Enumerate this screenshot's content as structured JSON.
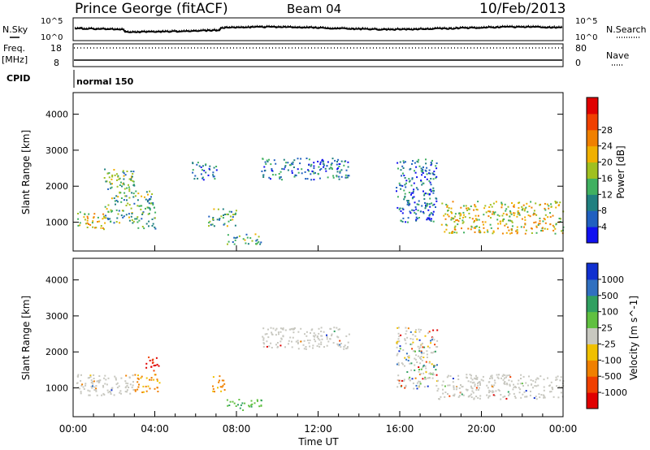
{
  "header": {
    "site": "Prince George (fitACF)",
    "beam": "Beam 04",
    "date": "10/Feb/2013"
  },
  "sky_panel": {
    "left_label": "N.Sky",
    "right_label": "N.Search",
    "left_ticks": [
      "10^5",
      "10^0"
    ],
    "right_ticks": [
      "10^5",
      "10^0"
    ]
  },
  "freq_panel": {
    "left_label_1": "Freq.",
    "left_label_2": "[MHz]",
    "right_label": "Nave",
    "left_ticks": [
      "18",
      "8"
    ],
    "right_ticks": [
      "80",
      "0"
    ]
  },
  "cpid": {
    "label": "CPID",
    "mode": "normal 150"
  },
  "chart_data": [
    {
      "type": "heatmap",
      "parameter": "power",
      "ylabel": "Slant Range [km]",
      "xlabel": "",
      "ylim": [
        200,
        4600
      ],
      "yticks": [
        "1000",
        "2000",
        "3000",
        "4000"
      ],
      "colorbar": {
        "label": "Power [dB]",
        "ticks": [
          "4",
          "8",
          "12",
          "16",
          "20",
          "24",
          "28"
        ],
        "colors": [
          "#1010f0",
          "#2060c0",
          "#208080",
          "#40b060",
          "#a0c020",
          "#f0b000",
          "#f08000",
          "#f04000",
          "#e00000"
        ]
      },
      "echo_regions": [
        {
          "t": [
            0.2,
            1.6
          ],
          "r": [
            800,
            1300
          ],
          "level": "strong"
        },
        {
          "t": [
            1.5,
            3.0
          ],
          "r": [
            1000,
            2500
          ],
          "level": "moderate"
        },
        {
          "t": [
            3.0,
            4.0
          ],
          "r": [
            800,
            1900
          ],
          "level": "moderate"
        },
        {
          "t": [
            5.8,
            7.0
          ],
          "r": [
            2200,
            2700
          ],
          "level": "weak"
        },
        {
          "t": [
            6.6,
            8.0
          ],
          "r": [
            900,
            1400
          ],
          "level": "moderate"
        },
        {
          "t": [
            7.5,
            9.2
          ],
          "r": [
            400,
            700
          ],
          "level": "moderate"
        },
        {
          "t": [
            9.2,
            13.5
          ],
          "r": [
            2200,
            2800
          ],
          "level": "weak"
        },
        {
          "t": [
            15.8,
            17.8
          ],
          "r": [
            1000,
            2800
          ],
          "level": "weak"
        },
        {
          "t": [
            18.0,
            24.0
          ],
          "r": [
            700,
            1600
          ],
          "level": "strong"
        }
      ]
    },
    {
      "type": "heatmap",
      "parameter": "velocity",
      "ylabel": "Slant Range [km]",
      "xlabel": "Time UT",
      "ylim": [
        200,
        4600
      ],
      "yticks": [
        "1000",
        "2000",
        "3000",
        "4000"
      ],
      "xticks": [
        "00:00",
        "04:00",
        "08:00",
        "12:00",
        "16:00",
        "20:00",
        "00:00"
      ],
      "xlim_hours": [
        0,
        24
      ],
      "colorbar": {
        "label": "Velocity [m s^-1]",
        "ticks": [
          "1000",
          "500",
          "100",
          "25",
          "-25",
          "-100",
          "-500",
          "-1000"
        ],
        "colors": [
          "#1030d0",
          "#3070c0",
          "#30a060",
          "#60c040",
          "#c8c8c0",
          "#f0c000",
          "#f08000",
          "#f04000",
          "#e00000"
        ]
      },
      "echo_regions": [
        {
          "t": [
            0.0,
            3.0
          ],
          "r": [
            800,
            1400
          ],
          "velocity": "near zero (ground scatter)"
        },
        {
          "t": [
            3.0,
            4.2
          ],
          "r": [
            900,
            1400
          ],
          "velocity": "-500"
        },
        {
          "t": [
            3.5,
            4.2
          ],
          "r": [
            1500,
            1900
          ],
          "velocity": "-1000"
        },
        {
          "t": [
            6.8,
            7.4
          ],
          "r": [
            900,
            1400
          ],
          "velocity": "-500"
        },
        {
          "t": [
            7.5,
            9.2
          ],
          "r": [
            400,
            700
          ],
          "velocity": "100"
        },
        {
          "t": [
            9.2,
            13.5
          ],
          "r": [
            2100,
            2700
          ],
          "velocity": "near zero (ground scatter)"
        },
        {
          "t": [
            15.8,
            17.8
          ],
          "r": [
            1000,
            2700
          ],
          "velocity": "mixed"
        },
        {
          "t": [
            17.8,
            24.0
          ],
          "r": [
            700,
            1400
          ],
          "velocity": "near zero (ground scatter)"
        }
      ]
    }
  ]
}
